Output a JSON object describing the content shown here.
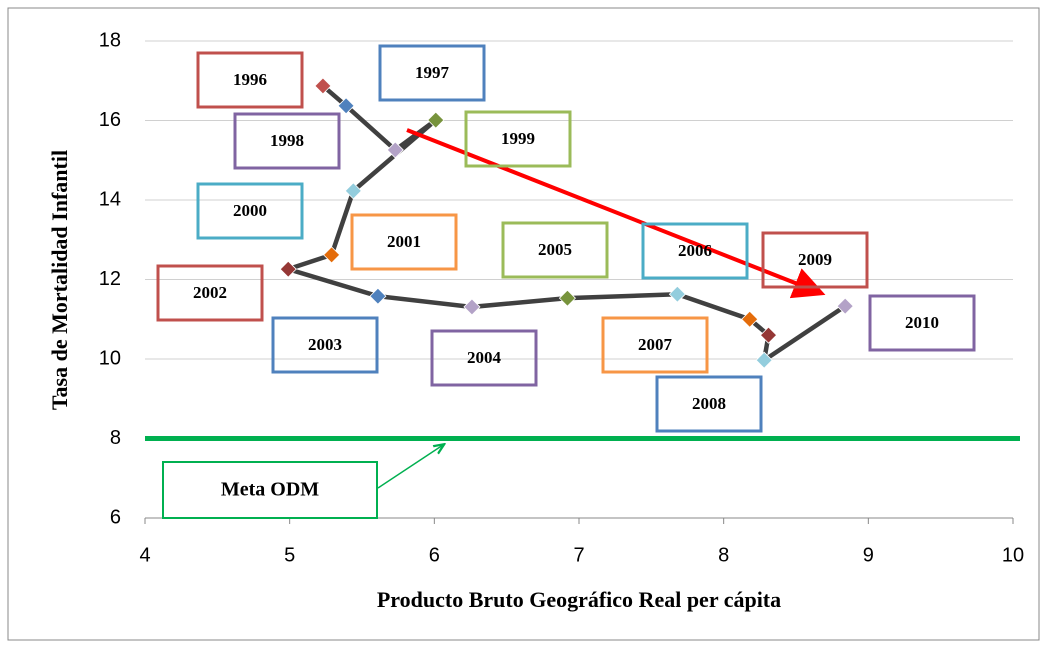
{
  "chart_data": {
    "type": "line",
    "xlabel": "Producto Bruto Geográfico Real per cápita",
    "ylabel": "Tasa de Mortalidad Infantil",
    "labels": [
      "1996",
      "1997",
      "1998",
      "1999",
      "2000",
      "2001",
      "2002",
      "2003",
      "2004",
      "2005",
      "2006",
      "2007",
      "2008",
      "2009",
      "2010"
    ],
    "x": [
      5.23,
      5.39,
      5.73,
      6.01,
      5.44,
      5.29,
      4.99,
      5.61,
      6.26,
      6.92,
      7.68,
      8.18,
      8.31,
      8.28,
      8.84
    ],
    "values": [
      16.87,
      16.37,
      15.26,
      16.01,
      14.23,
      12.62,
      12.26,
      11.58,
      11.31,
      11.53,
      11.63,
      11.0,
      10.6,
      9.97,
      11.33
    ],
    "colors": [
      "#c0504d",
      "#4f81bd",
      "#b3a2c7",
      "#77933c",
      "#93cddd",
      "#e46c0a",
      "#953735",
      "#4f81bd",
      "#b3a2c7",
      "#77933c",
      "#93cddd",
      "#e46c0a",
      "#953735",
      "#93cddd",
      "#b3a2c7"
    ],
    "box_colors": [
      "#c0504d",
      "#4f81bd",
      "#8064a2",
      "#9bbb59",
      "#4bacc6",
      "#f79646",
      "#c0504d",
      "#4f81bd",
      "#8064a2",
      "#9bbb59",
      "#4bacc6",
      "#f79646",
      "#4f81bd",
      "#c0504d",
      "#8064a2"
    ],
    "line_color": "#404040",
    "goal": {
      "value": 8,
      "label": "Meta ODM",
      "color": "#00b050"
    },
    "xlim": [
      4,
      10
    ],
    "xticks": [
      4,
      5,
      6,
      7,
      8,
      9,
      10
    ],
    "ylim": [
      6,
      18
    ],
    "yticks": [
      6,
      8,
      10,
      12,
      14,
      16,
      18
    ],
    "grid": true
  }
}
